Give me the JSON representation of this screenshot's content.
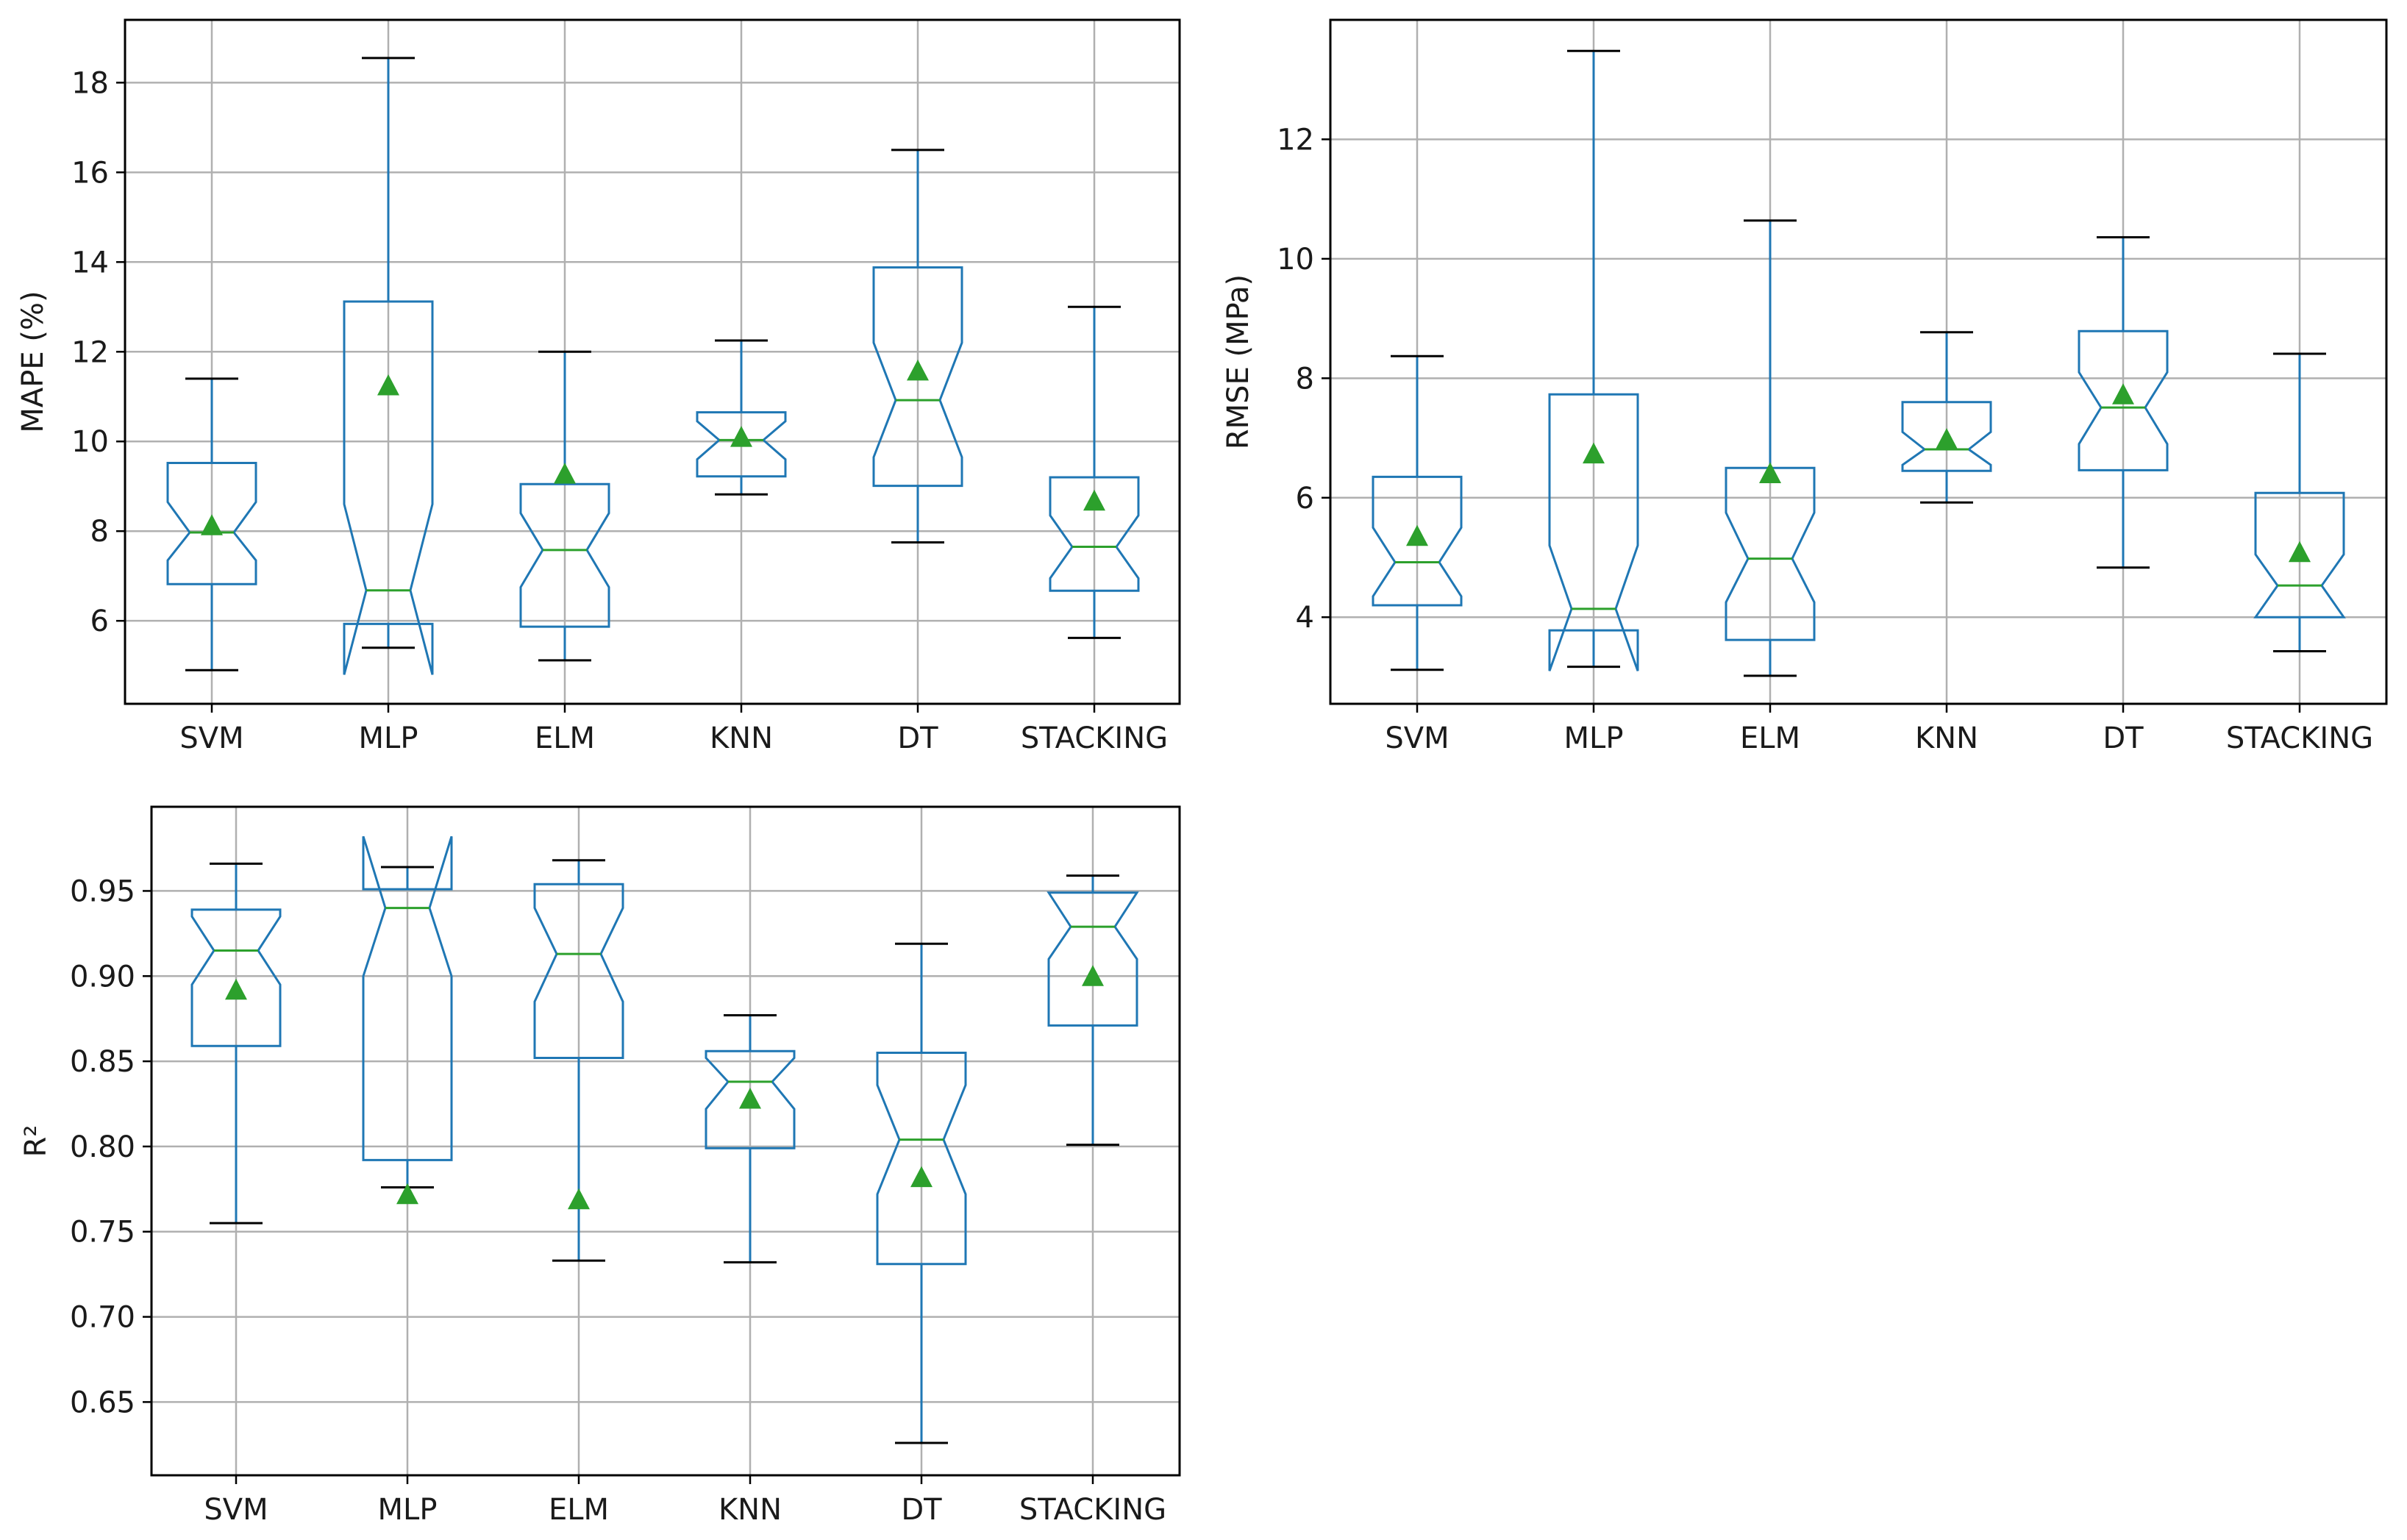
{
  "colors": {
    "box": "#1f77b4",
    "median": "#2ca02c",
    "mean_marker": "#2ca02c",
    "whisker_cap": "#000000",
    "grid": "#b0b0b0",
    "axes": "#000000",
    "background": "#ffffff"
  },
  "chart_data": [
    {
      "type": "boxplot",
      "notched": true,
      "show_means": true,
      "grid": true,
      "title": "",
      "xlabel": "",
      "ylabel": "MAPE (%)",
      "ylim": [
        4.15,
        19.4
      ],
      "yticks": [
        6,
        8,
        10,
        12,
        14,
        16,
        18
      ],
      "ytick_labels": [
        "6",
        "8",
        "10",
        "12",
        "14",
        "16",
        "18"
      ],
      "categories": [
        "SVM",
        "MLP",
        "ELM",
        "KNN",
        "DT",
        "STACKING"
      ],
      "boxes": [
        {
          "name": "SVM",
          "whislo": 4.9,
          "q1": 6.82,
          "med": 7.97,
          "q3": 9.52,
          "whishi": 11.4,
          "notch_lo": 7.35,
          "notch_hi": 8.65,
          "mean": 8.13
        },
        {
          "name": "MLP",
          "whislo": 5.4,
          "q1": 5.93,
          "med": 6.68,
          "q3": 13.12,
          "whishi": 18.55,
          "notch_lo": 4.8,
          "notch_hi": 8.6,
          "mean": 11.25
        },
        {
          "name": "ELM",
          "whislo": 5.12,
          "q1": 5.87,
          "med": 7.58,
          "q3": 9.05,
          "whishi": 12.0,
          "notch_lo": 6.75,
          "notch_hi": 8.4,
          "mean": 9.28
        },
        {
          "name": "KNN",
          "whislo": 8.82,
          "q1": 9.22,
          "med": 10.03,
          "q3": 10.65,
          "whishi": 12.25,
          "notch_lo": 9.6,
          "notch_hi": 10.45,
          "mean": 10.1
        },
        {
          "name": "DT",
          "whislo": 7.75,
          "q1": 9.01,
          "med": 10.92,
          "q3": 13.88,
          "whishi": 16.5,
          "notch_lo": 9.65,
          "notch_hi": 12.2,
          "mean": 11.58
        },
        {
          "name": "STACKING",
          "whislo": 5.62,
          "q1": 6.67,
          "med": 7.65,
          "q3": 9.2,
          "whishi": 13.0,
          "notch_lo": 6.95,
          "notch_hi": 8.35,
          "mean": 8.68
        }
      ]
    },
    {
      "type": "boxplot",
      "notched": true,
      "show_means": true,
      "grid": true,
      "title": "",
      "xlabel": "",
      "ylabel": "RMSE (MPa)",
      "ylim": [
        2.55,
        14.0
      ],
      "yticks": [
        4,
        6,
        8,
        10,
        12
      ],
      "ytick_labels": [
        "4",
        "6",
        "8",
        "10",
        "12"
      ],
      "categories": [
        "SVM",
        "MLP",
        "ELM",
        "KNN",
        "DT",
        "STACKING"
      ],
      "boxes": [
        {
          "name": "SVM",
          "whislo": 3.12,
          "q1": 4.2,
          "med": 4.92,
          "q3": 6.35,
          "whishi": 8.37,
          "notch_lo": 4.35,
          "notch_hi": 5.5,
          "mean": 5.36
        },
        {
          "name": "MLP",
          "whislo": 3.17,
          "q1": 3.78,
          "med": 4.14,
          "q3": 7.73,
          "whishi": 13.48,
          "notch_lo": 3.1,
          "notch_hi": 5.2,
          "mean": 6.74
        },
        {
          "name": "ELM",
          "whislo": 3.02,
          "q1": 3.62,
          "med": 4.98,
          "q3": 6.5,
          "whishi": 10.64,
          "notch_lo": 4.25,
          "notch_hi": 5.75,
          "mean": 6.41
        },
        {
          "name": "KNN",
          "whislo": 5.92,
          "q1": 6.45,
          "med": 6.81,
          "q3": 7.6,
          "whishi": 8.77,
          "notch_lo": 6.55,
          "notch_hi": 7.1,
          "mean": 6.98
        },
        {
          "name": "DT",
          "whislo": 4.83,
          "q1": 6.46,
          "med": 7.51,
          "q3": 8.79,
          "whishi": 10.36,
          "notch_lo": 6.9,
          "notch_hi": 8.1,
          "mean": 7.73
        },
        {
          "name": "STACKING",
          "whislo": 3.43,
          "q1": 4.0,
          "med": 4.53,
          "q3": 6.08,
          "whishi": 8.41,
          "notch_lo": 4.0,
          "notch_hi": 5.05,
          "mean": 5.09
        }
      ]
    },
    {
      "type": "boxplot",
      "notched": true,
      "show_means": true,
      "grid": true,
      "title": "",
      "xlabel": "",
      "ylabel": "R²",
      "ylim": [
        0.607,
        0.9994
      ],
      "yticks": [
        0.65,
        0.7,
        0.75,
        0.8,
        0.85,
        0.9,
        0.95
      ],
      "ytick_labels": [
        "0.65",
        "0.70",
        "0.75",
        "0.80",
        "0.85",
        "0.90",
        "0.95"
      ],
      "categories": [
        "SVM",
        "MLP",
        "ELM",
        "KNN",
        "DT",
        "STACKING"
      ],
      "boxes": [
        {
          "name": "SVM",
          "whislo": 0.755,
          "q1": 0.859,
          "med": 0.915,
          "q3": 0.939,
          "whishi": 0.966,
          "notch_lo": 0.895,
          "notch_hi": 0.935,
          "mean": 0.892
        },
        {
          "name": "MLP",
          "whislo": 0.776,
          "q1": 0.792,
          "med": 0.94,
          "q3": 0.951,
          "whishi": 0.964,
          "notch_lo": 0.9,
          "notch_hi": 0.982,
          "mean": 0.772
        },
        {
          "name": "ELM",
          "whislo": 0.733,
          "q1": 0.852,
          "med": 0.913,
          "q3": 0.954,
          "whishi": 0.968,
          "notch_lo": 0.885,
          "notch_hi": 0.94,
          "mean": 0.769
        },
        {
          "name": "KNN",
          "whislo": 0.732,
          "q1": 0.799,
          "med": 0.838,
          "q3": 0.856,
          "whishi": 0.877,
          "notch_lo": 0.822,
          "notch_hi": 0.852,
          "mean": 0.828
        },
        {
          "name": "DT",
          "whislo": 0.626,
          "q1": 0.731,
          "med": 0.804,
          "q3": 0.855,
          "whishi": 0.919,
          "notch_lo": 0.772,
          "notch_hi": 0.836,
          "mean": 0.782
        },
        {
          "name": "STACKING",
          "whislo": 0.801,
          "q1": 0.871,
          "med": 0.929,
          "q3": 0.949,
          "whishi": 0.959,
          "notch_lo": 0.91,
          "notch_hi": 0.949,
          "mean": 0.9
        }
      ]
    }
  ]
}
